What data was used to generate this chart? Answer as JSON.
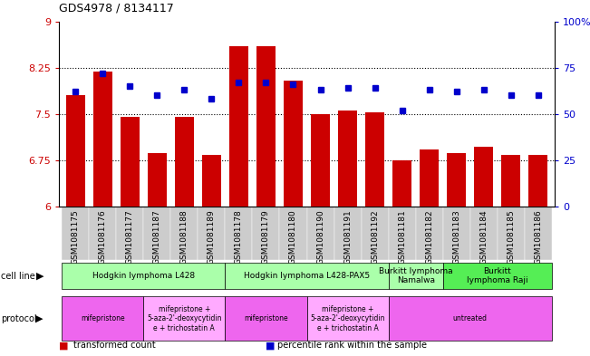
{
  "title": "GDS4978 / 8134117",
  "samples": [
    "GSM1081175",
    "GSM1081176",
    "GSM1081177",
    "GSM1081187",
    "GSM1081188",
    "GSM1081189",
    "GSM1081178",
    "GSM1081179",
    "GSM1081180",
    "GSM1081190",
    "GSM1081191",
    "GSM1081192",
    "GSM1081181",
    "GSM1081182",
    "GSM1081183",
    "GSM1081184",
    "GSM1081185",
    "GSM1081186"
  ],
  "bar_values": [
    7.8,
    8.19,
    7.45,
    6.87,
    7.45,
    6.84,
    8.6,
    8.6,
    8.04,
    7.5,
    7.56,
    7.52,
    6.75,
    6.92,
    6.87,
    6.97,
    6.83,
    6.83
  ],
  "dot_values": [
    62,
    72,
    65,
    60,
    63,
    58,
    67,
    67,
    66,
    63,
    64,
    64,
    52,
    63,
    62,
    63,
    60,
    60
  ],
  "ylim_left": [
    6.0,
    9.0
  ],
  "ylim_right": [
    0,
    100
  ],
  "yticks_left": [
    6.0,
    6.75,
    7.5,
    8.25,
    9.0
  ],
  "yticks_right": [
    0,
    25,
    50,
    75,
    100
  ],
  "ytick_labels_left": [
    "6",
    "6.75",
    "7.5",
    "8.25",
    "9"
  ],
  "ytick_labels_right": [
    "0",
    "25",
    "50",
    "75",
    "100%"
  ],
  "bar_color": "#cc0000",
  "dot_color": "#0000cc",
  "grid_lines": [
    6.75,
    7.5,
    8.25
  ],
  "cell_line_groups": [
    {
      "label": "Hodgkin lymphoma L428",
      "start": 0,
      "end": 5,
      "color": "#aaffaa"
    },
    {
      "label": "Hodgkin lymphoma L428-PAX5",
      "start": 6,
      "end": 11,
      "color": "#aaffaa"
    },
    {
      "label": "Burkitt lymphoma\nNamalwa",
      "start": 12,
      "end": 13,
      "color": "#aaffaa"
    },
    {
      "label": "Burkitt\nlymphoma Raji",
      "start": 14,
      "end": 17,
      "color": "#55ee55"
    }
  ],
  "protocol_groups": [
    {
      "label": "mifepristone",
      "start": 0,
      "end": 2,
      "color": "#ee66ee"
    },
    {
      "label": "mifepristone +\n5-aza-2'-deoxycytidin\ne + trichostatin A",
      "start": 3,
      "end": 5,
      "color": "#ffaaff"
    },
    {
      "label": "mifepristone",
      "start": 6,
      "end": 8,
      "color": "#ee66ee"
    },
    {
      "label": "mifepristone +\n5-aza-2'-deoxycytidin\ne + trichostatin A",
      "start": 9,
      "end": 11,
      "color": "#ffaaff"
    },
    {
      "label": "untreated",
      "start": 12,
      "end": 17,
      "color": "#ee66ee"
    }
  ],
  "tick_bg_colors": [
    "#cccccc",
    "#cccccc",
    "#cccccc",
    "#cccccc",
    "#cccccc",
    "#cccccc",
    "#cccccc",
    "#cccccc",
    "#cccccc",
    "#cccccc",
    "#cccccc",
    "#cccccc",
    "#cccccc",
    "#cccccc",
    "#cccccc",
    "#cccccc",
    "#cccccc",
    "#cccccc"
  ],
  "legend_items": [
    {
      "label": "transformed count",
      "color": "#cc0000"
    },
    {
      "label": "percentile rank within the sample",
      "color": "#0000cc"
    }
  ]
}
